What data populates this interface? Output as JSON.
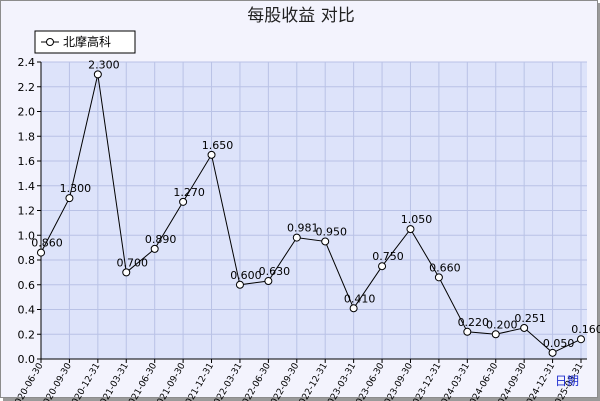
{
  "chart_data": {
    "type": "line",
    "title": "每股收益  对比",
    "xlabel": "日期",
    "ylabel": "",
    "ylim": [
      0,
      2.4
    ],
    "yticks": [
      "0.0",
      "0.2",
      "0.4",
      "0.6",
      "0.8",
      "1.0",
      "1.2",
      "1.4",
      "1.6",
      "1.8",
      "2.0",
      "2.2",
      "2.4"
    ],
    "grid": true,
    "legend_position": "top-left",
    "categories": [
      "2020-06-30",
      "2020-09-30",
      "2020-12-31",
      "2021-03-31",
      "2021-06-30",
      "2021-09-30",
      "2021-12-31",
      "2022-03-31",
      "2022-06-30",
      "2022-09-30",
      "2022-12-31",
      "2023-03-31",
      "2023-06-30",
      "2023-09-30",
      "2023-12-31",
      "2024-03-31",
      "2024-06-30",
      "2024-09-30",
      "2024-12-31",
      "2025-03-31"
    ],
    "series": [
      {
        "name": "北摩高科",
        "color": "#000000",
        "values": [
          0.86,
          1.3,
          2.3,
          0.7,
          0.89,
          1.27,
          1.65,
          0.6,
          0.63,
          0.981,
          0.95,
          0.41,
          0.75,
          1.05,
          0.66,
          0.22,
          0.2,
          0.251,
          0.05,
          0.16
        ],
        "labels": [
          "0.860",
          "1.300",
          "2.300",
          "0.700",
          "0.890",
          "1.270",
          "1.650",
          "0.600",
          "0.630",
          "0.981",
          "0.950",
          "0.410",
          "0.750",
          "1.050",
          "0.660",
          "0.220",
          "0.200",
          "0.251",
          "0.050",
          "0.160"
        ]
      }
    ],
    "colors": {
      "plot_bg": "#dde3fa",
      "grid": "#b9c2e6",
      "frame_bg": "#f3f3fd",
      "axis_label": "#1f2fd0"
    }
  }
}
